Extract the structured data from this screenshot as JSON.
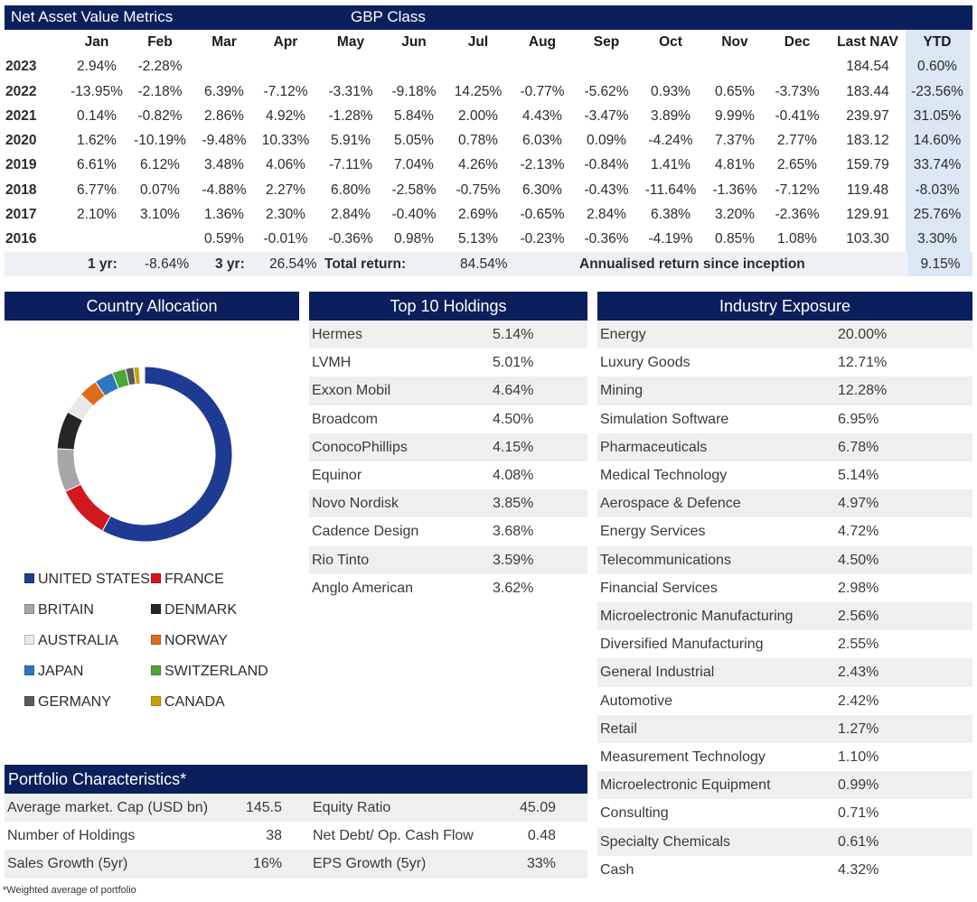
{
  "nav": {
    "title": "Net Asset Value Metrics",
    "class_label": "GBP Class",
    "columns": [
      "Jan",
      "Feb",
      "Mar",
      "Apr",
      "May",
      "Jun",
      "Jul",
      "Aug",
      "Sep",
      "Oct",
      "Nov",
      "Dec",
      "Last NAV",
      "YTD"
    ],
    "rows": [
      {
        "year": "2023",
        "values": [
          "2.94%",
          "-2.28%",
          "",
          "",
          "",
          "",
          "",
          "",
          "",
          "",
          "",
          "",
          "184.54",
          "0.60%"
        ]
      },
      {
        "year": "2022",
        "values": [
          "-13.95%",
          "-2.18%",
          "6.39%",
          "-7.12%",
          "-3.31%",
          "-9.18%",
          "14.25%",
          "-0.77%",
          "-5.62%",
          "0.93%",
          "0.65%",
          "-3.73%",
          "183.44",
          "-23.56%"
        ]
      },
      {
        "year": "2021",
        "values": [
          "0.14%",
          "-0.82%",
          "2.86%",
          "4.92%",
          "-1.28%",
          "5.84%",
          "2.00%",
          "4.43%",
          "-3.47%",
          "3.89%",
          "9.99%",
          "-0.41%",
          "239.97",
          "31.05%"
        ]
      },
      {
        "year": "2020",
        "values": [
          "1.62%",
          "-10.19%",
          "-9.48%",
          "10.33%",
          "5.91%",
          "5.05%",
          "0.78%",
          "6.03%",
          "0.09%",
          "-4.24%",
          "7.37%",
          "2.77%",
          "183.12",
          "14.60%"
        ]
      },
      {
        "year": "2019",
        "values": [
          "6.61%",
          "6.12%",
          "3.48%",
          "4.06%",
          "-7.11%",
          "7.04%",
          "4.26%",
          "-2.13%",
          "-0.84%",
          "1.41%",
          "4.81%",
          "2.65%",
          "159.79",
          "33.74%"
        ]
      },
      {
        "year": "2018",
        "values": [
          "6.77%",
          "0.07%",
          "-4.88%",
          "2.27%",
          "6.80%",
          "-2.58%",
          "-0.75%",
          "6.30%",
          "-0.43%",
          "-11.64%",
          "-1.36%",
          "-7.12%",
          "119.48",
          "-8.03%"
        ]
      },
      {
        "year": "2017",
        "values": [
          "2.10%",
          "3.10%",
          "1.36%",
          "2.30%",
          "2.84%",
          "-0.40%",
          "2.69%",
          "-0.65%",
          "2.84%",
          "6.38%",
          "3.20%",
          "-2.36%",
          "129.91",
          "25.76%"
        ]
      },
      {
        "year": "2016",
        "values": [
          "",
          "",
          "0.59%",
          "-0.01%",
          "-0.36%",
          "0.98%",
          "5.13%",
          "-0.23%",
          "-0.36%",
          "-4.19%",
          "0.85%",
          "1.08%",
          "103.30",
          "3.30%"
        ]
      }
    ],
    "summary": {
      "one_yr_label": "1 yr:",
      "one_yr_value": "-8.64%",
      "three_yr_label": "3 yr:",
      "three_yr_value": "26.54%",
      "total_label": "Total return:",
      "total_value": "84.54%",
      "annualised_label": "Annualised return since inception",
      "annualised_value": "9.15%"
    }
  },
  "country": {
    "title": "Country Allocation",
    "legend": [
      {
        "label": "UNITED STATES",
        "color": "#1f3a93"
      },
      {
        "label": "FRANCE",
        "color": "#d0181e"
      },
      {
        "label": "BRITAIN",
        "color": "#a6a6a6"
      },
      {
        "label": "DENMARK",
        "color": "#262626"
      },
      {
        "label": "AUSTRALIA",
        "color": "#e8e8e8"
      },
      {
        "label": "NORWAY",
        "color": "#e06c1a"
      },
      {
        "label": "JAPAN",
        "color": "#2f75c0"
      },
      {
        "label": "SWITZERLAND",
        "color": "#4aa637"
      },
      {
        "label": "GERMANY",
        "color": "#5a5a5a"
      },
      {
        "label": "CANADA",
        "color": "#c9a100"
      }
    ],
    "donut_segments": [
      {
        "label": "UNITED STATES",
        "share": 0.58,
        "color": "#1f3a93"
      },
      {
        "label": "FRANCE",
        "share": 0.1,
        "color": "#d0181e"
      },
      {
        "label": "BRITAIN",
        "share": 0.08,
        "color": "#a6a6a6"
      },
      {
        "label": "DENMARK",
        "share": 0.07,
        "color": "#262626"
      },
      {
        "label": "AUSTRALIA",
        "share": 0.04,
        "color": "#e8e8e8"
      },
      {
        "label": "NORWAY",
        "share": 0.035,
        "color": "#e06c1a"
      },
      {
        "label": "JAPAN",
        "share": 0.035,
        "color": "#2f75c0"
      },
      {
        "label": "SWITZERLAND",
        "share": 0.025,
        "color": "#4aa637"
      },
      {
        "label": "GERMANY",
        "share": 0.015,
        "color": "#5a5a5a"
      },
      {
        "label": "CANADA",
        "share": 0.01,
        "color": "#c9a100"
      }
    ]
  },
  "holdings": {
    "title": "Top 10 Holdings",
    "items": [
      {
        "name": "Hermes",
        "value": "5.14%"
      },
      {
        "name": "LVMH",
        "value": "5.01%"
      },
      {
        "name": "Exxon Mobil",
        "value": "4.64%"
      },
      {
        "name": "Broadcom",
        "value": "4.50%"
      },
      {
        "name": "ConocoPhillips",
        "value": "4.15%"
      },
      {
        "name": "Equinor",
        "value": "4.08%"
      },
      {
        "name": "Novo Nordisk",
        "value": "3.85%"
      },
      {
        "name": "Cadence Design",
        "value": "3.68%"
      },
      {
        "name": "Rio Tinto",
        "value": "3.59%"
      },
      {
        "name": "Anglo American",
        "value": "3.62%"
      }
    ]
  },
  "industry": {
    "title": "Industry Exposure",
    "items": [
      {
        "name": "Energy",
        "value": "20.00%"
      },
      {
        "name": "Luxury Goods",
        "value": "12.71%"
      },
      {
        "name": "Mining",
        "value": "12.28%"
      },
      {
        "name": "Simulation Software",
        "value": "6.95%"
      },
      {
        "name": "Pharmaceuticals",
        "value": "6.78%"
      },
      {
        "name": "Medical Technology",
        "value": "5.14%"
      },
      {
        "name": "Aerospace & Defence",
        "value": "4.97%"
      },
      {
        "name": "Energy Services",
        "value": "4.72%"
      },
      {
        "name": "Telecommunications",
        "value": "4.50%"
      },
      {
        "name": "Financial Services",
        "value": "2.98%"
      },
      {
        "name": "Microelectronic Manufacturing",
        "value": "2.56%"
      },
      {
        "name": "Diversified Manufacturing",
        "value": "2.55%"
      },
      {
        "name": "General Industrial",
        "value": "2.43%"
      },
      {
        "name": "Automotive",
        "value": "2.42%"
      },
      {
        "name": "Retail",
        "value": "1.27%"
      },
      {
        "name": "Measurement Technology",
        "value": "1.10%"
      },
      {
        "name": "Microelectronic Equipment",
        "value": "0.99%"
      },
      {
        "name": "Consulting",
        "value": "0.71%"
      },
      {
        "name": "Specialty Chemicals",
        "value": "0.61%"
      },
      {
        "name": "Cash",
        "value": "4.32%"
      }
    ]
  },
  "portfolio": {
    "title": "Portfolio Characteristics*",
    "rows": [
      {
        "label1": "Average market. Cap (USD bn)",
        "value1": "145.5",
        "label2": "Equity Ratio",
        "value2": "45.09"
      },
      {
        "label1": "Number of Holdings",
        "value1": "38",
        "label2": "Net Debt/ Op. Cash Flow",
        "value2": "0.48"
      },
      {
        "label1": "Sales Growth (5yr)",
        "value1": "16%",
        "label2": "EPS Growth (5yr)",
        "value2": "33%"
      }
    ],
    "footnote": "*Weighted average of portfolio"
  }
}
